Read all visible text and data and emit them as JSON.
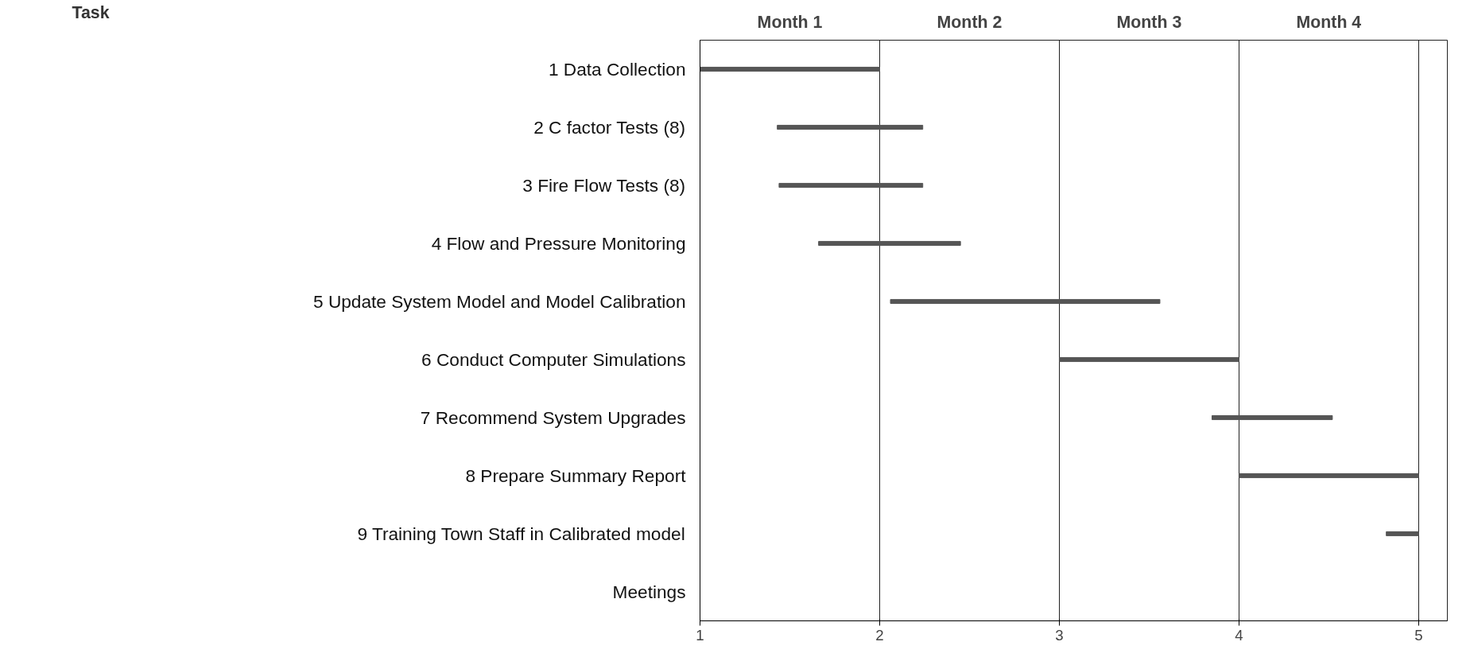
{
  "chart_data": {
    "type": "bar",
    "orientation": "horizontal",
    "categories": [
      "1 Data Collection",
      "2 C factor Tests (8)",
      "3 Fire Flow Tests (8)",
      "4 Flow and Pressure Monitoring",
      "5 Update System Model and Model Calibration",
      "6 Conduct Computer Simulations",
      "7 Recommend System Upgrades",
      "8 Prepare Summary Report",
      "9 Training Town Staff in Calibrated model",
      "Meetings"
    ],
    "base": [
      1.0,
      1.43,
      1.44,
      1.66,
      2.06,
      3.0,
      3.85,
      4.0,
      4.82,
      null
    ],
    "values": [
      1.0,
      0.81,
      0.8,
      0.79,
      1.5,
      1.0,
      0.67,
      1.0,
      0.18,
      null
    ],
    "color": "#555555",
    "xlim": [
      1,
      5.16
    ],
    "xticks": [
      1,
      2,
      3,
      4,
      5
    ],
    "annotations": [
      "Task",
      "Month 1",
      "Month 2",
      "Month 3",
      "Month 4"
    ],
    "grid": "x"
  }
}
